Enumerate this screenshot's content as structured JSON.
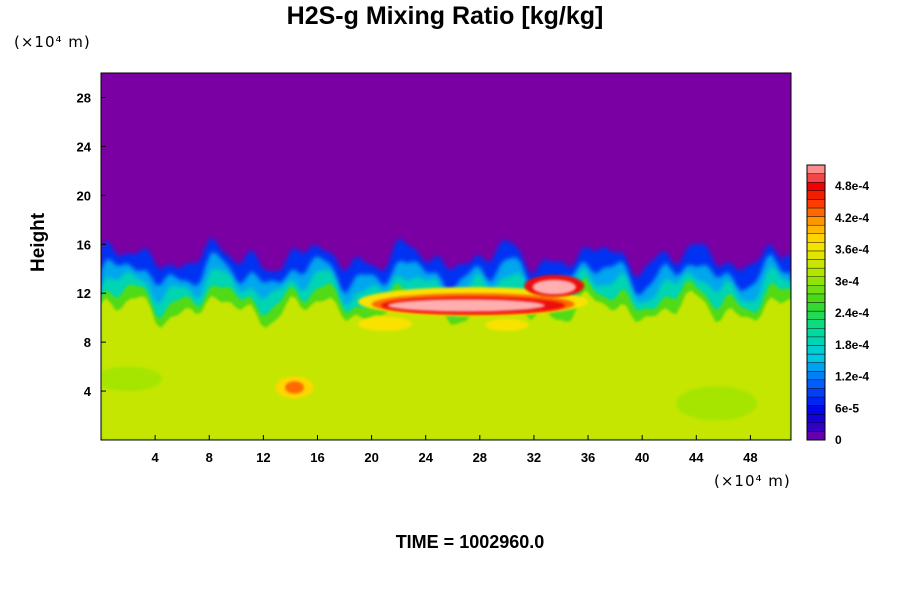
{
  "chart_data": {
    "type": "heatmap",
    "title": "H2S-g Mixing Ratio [kg/kg]",
    "ylabel": "Height",
    "y_unit": "(×10⁴ m)",
    "x_unit": "(×10⁴ m)",
    "xlim": [
      0,
      51
    ],
    "ylim": [
      0,
      30
    ],
    "x_ticks": [
      4,
      8,
      12,
      16,
      20,
      24,
      28,
      32,
      36,
      40,
      44,
      48
    ],
    "y_ticks": [
      4,
      8,
      12,
      16,
      20,
      24,
      28
    ],
    "colorbar": {
      "range": [
        0,
        0.00052
      ],
      "labels": [
        {
          "value": 0,
          "text": "0"
        },
        {
          "value": 6e-05,
          "text": "6e-5"
        },
        {
          "value": 0.00012,
          "text": "1.2e-4"
        },
        {
          "value": 0.00018,
          "text": "1.8e-4"
        },
        {
          "value": 0.00024,
          "text": "2.4e-4"
        },
        {
          "value": 0.0003,
          "text": "3e-4"
        },
        {
          "value": 0.00036,
          "text": "3.6e-4"
        },
        {
          "value": 0.00042,
          "text": "4.2e-4"
        },
        {
          "value": 0.00048,
          "text": "4.8e-4"
        }
      ]
    },
    "field": {
      "background_upper_value": 0,
      "background_lower_value": 0.00033,
      "interface_height_mean": 14,
      "hot_band_height": 11,
      "hot_band_x_range": [
        19,
        36
      ]
    },
    "annotation": "TIME = 1002960.0"
  }
}
